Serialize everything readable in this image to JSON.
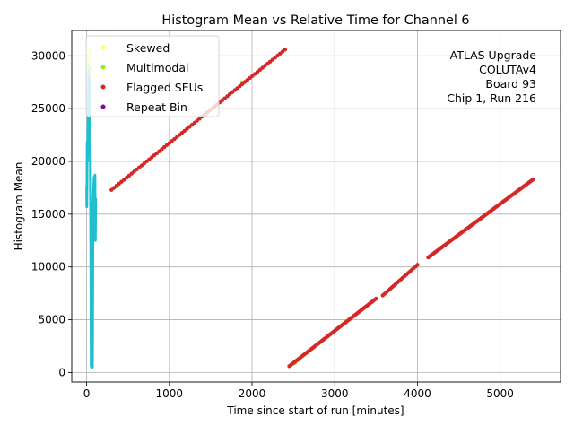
{
  "chart_data": {
    "type": "scatter",
    "title": "Histogram Mean vs Relative Time for Channel 6",
    "xlabel": "Time since start of run [minutes]",
    "ylabel": "Histogram Mean",
    "xlim": [
      -180,
      5730
    ],
    "ylim": [
      -900,
      32400
    ],
    "xticks": [
      0,
      1000,
      2000,
      3000,
      4000,
      5000
    ],
    "xtick_labels": [
      "0",
      "1000",
      "2000",
      "3000",
      "4000",
      "5000"
    ],
    "yticks": [
      0,
      5000,
      10000,
      15000,
      20000,
      25000,
      30000
    ],
    "ytick_labels": [
      "0",
      "5000",
      "10000",
      "15000",
      "20000",
      "25000",
      "30000"
    ],
    "grid": true,
    "legend_position": "top-left",
    "annotation": [
      "ATLAS Upgrade",
      "COLUTAv4",
      "Board 93",
      "Chip 1, Run 216"
    ],
    "colors": {
      "main": "#1fbfcf",
      "skewed": "#ffff66",
      "multimodal": "#99ee11",
      "flagged": "#d62728",
      "repeat": "#7b0f8a"
    },
    "series": [
      {
        "name": "Skewed",
        "color": "#ffff66",
        "x": [
          10,
          15,
          20,
          25,
          30,
          35,
          40,
          45,
          50,
          55
        ],
        "y": [
          30700,
          30400,
          29800,
          30100,
          30600,
          29500,
          28900,
          29300,
          28600,
          28200
        ]
      },
      {
        "name": "Multimodal",
        "color": "#99ee11",
        "x": [
          40,
          370,
          1640,
          1880,
          2520,
          2570,
          3130
        ],
        "y": [
          28800,
          17600,
          25800,
          27500,
          900,
          1200,
          4800
        ]
      },
      {
        "name": "Flagged SEUs",
        "color": "#d62728",
        "segments": [
          {
            "x_start": 300,
            "y_start": 17300,
            "x_end": 2400,
            "y_end": 30600,
            "count": 70
          },
          {
            "x_start": 2450,
            "y_start": 600,
            "x_end": 3500,
            "y_end": 7000,
            "count": 60
          },
          {
            "x_start": 3580,
            "y_start": 7300,
            "x_end": 4000,
            "y_end": 10200,
            "count": 20
          },
          {
            "x_start": 4130,
            "y_start": 10900,
            "x_end": 5400,
            "y_end": 18300,
            "count": 80
          }
        ]
      },
      {
        "name": "Repeat Bin",
        "color": "#7b0f8a",
        "x": [],
        "y": []
      }
    ],
    "main_series": {
      "color": "#1fbfcf",
      "x": [
        0,
        2,
        4,
        6,
        10,
        15,
        20,
        25,
        30,
        35,
        40,
        45,
        50,
        55,
        60,
        65,
        70,
        75,
        80,
        85,
        90,
        95,
        100,
        105,
        110
      ],
      "y": [
        17600,
        15700,
        18000,
        21800,
        20000,
        23000,
        25500,
        28000,
        30500,
        27000,
        24000,
        20000,
        12000,
        600,
        4200,
        8000,
        500,
        12000,
        16000,
        17500,
        18500,
        14000,
        18700,
        12500,
        16500
      ]
    }
  }
}
